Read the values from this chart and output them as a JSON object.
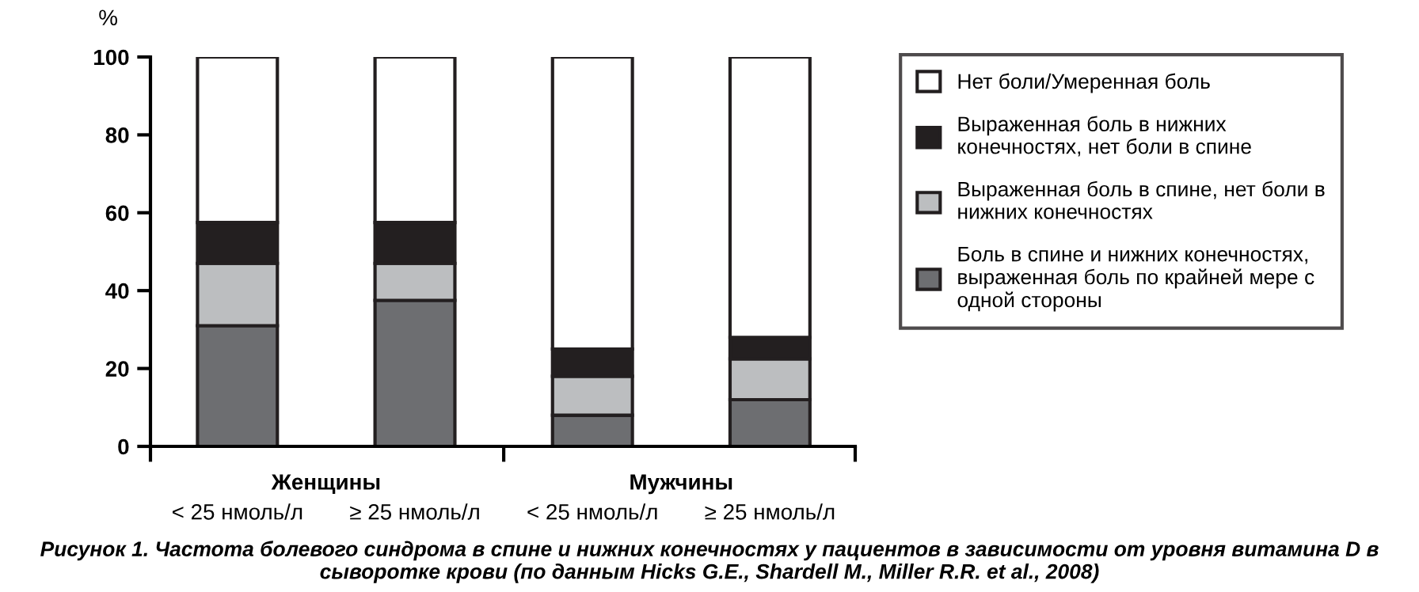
{
  "chart_data": {
    "type": "bar",
    "stacked": true,
    "ylabel": "%",
    "categories": [
      "< 25 нмоль/л",
      "≥ 25 нмоль/л",
      "< 25 нмоль/л",
      "≥ 25 нмоль/л"
    ],
    "series": [
      {
        "name": "Боль в спине и нижних конечностях, выраженная боль по крайней мере с одной стороны",
        "color": "#6d6e71",
        "values": [
          31,
          37.5,
          8,
          12
        ]
      },
      {
        "name": "Выраженная боль в спине, нет боли в нижних конечностях",
        "color": "#bcbec0",
        "values": [
          16,
          9.5,
          10,
          10.5
        ]
      },
      {
        "name": "Выраженная боль в нижних конечностях, нет боли в спине",
        "color": "#231f20",
        "values": [
          10.5,
          10.5,
          7,
          5.5
        ]
      },
      {
        "name": "Нет боли/Умеренная боль",
        "color": "#ffffff",
        "values": [
          42.5,
          42.5,
          75,
          72
        ]
      }
    ],
    "ylim": [
      0,
      100
    ],
    "yticks": [
      0,
      20,
      40,
      60,
      80,
      100
    ],
    "grid": false,
    "legend": "right",
    "annotations": [
      "Женщины",
      "Мужчины",
      "Рисунок 1. Частота болевого синдрома в спине и нижних конечностях у пациентов в зависимости от уровня витамина D в сыворотке крови (по данным Hicks G.E., Shardell M., Miller R.R. et al., 2008)"
    ]
  }
}
